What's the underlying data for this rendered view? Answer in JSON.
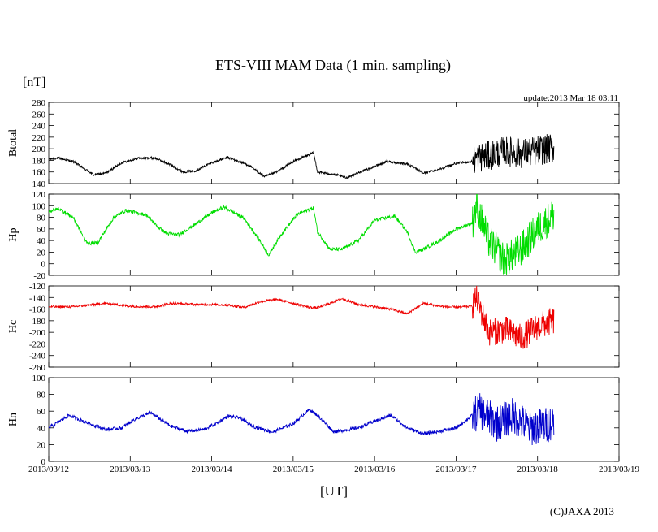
{
  "title": "ETS-VIII MAM Data (1 min. sampling)",
  "unit_label": "[nT]",
  "update_text": "update:2013 Mar 18 03:11",
  "xlabel": "[UT]",
  "copyright": "(C)JAXA 2013",
  "chart_data": {
    "type": "line",
    "x_axis": {
      "unit": "day",
      "range": [
        0,
        7
      ],
      "tick_values": [
        0,
        1,
        2,
        3,
        4,
        5,
        6,
        7
      ],
      "tick_labels": [
        "2013/03/12",
        "2013/03/13",
        "2013/03/14",
        "2013/03/15",
        "2013/03/16",
        "2013/03/17",
        "2013/03/18",
        "2013/03/19"
      ]
    },
    "panels": [
      {
        "name": "Btotal",
        "color": "#000000",
        "ylim": [
          140,
          280
        ],
        "yticks": [
          140,
          160,
          180,
          200,
          220,
          240,
          260,
          280
        ],
        "noise": 2,
        "storm_noise": 26,
        "x": [
          0,
          0.12,
          0.3,
          0.5,
          0.55,
          0.7,
          0.9,
          1.1,
          1.3,
          1.5,
          1.65,
          1.8,
          2.0,
          2.2,
          2.45,
          2.65,
          2.8,
          3.0,
          3.2,
          3.25,
          3.3,
          3.5,
          3.65,
          3.9,
          4.15,
          4.4,
          4.6,
          4.8,
          5.0,
          5.2,
          5.25,
          5.4,
          5.6,
          5.8,
          6.0,
          6.2
        ],
        "y": [
          182,
          184,
          178,
          160,
          155,
          158,
          176,
          184,
          184,
          172,
          160,
          162,
          176,
          185,
          172,
          152,
          160,
          178,
          190,
          193,
          160,
          156,
          150,
          164,
          178,
          174,
          158,
          165,
          175,
          178,
          184,
          188,
          196,
          192,
          197,
          201
        ]
      },
      {
        "name": "Hp",
        "color": "#00dd00",
        "ylim": [
          -20,
          120
        ],
        "yticks": [
          -20,
          0,
          20,
          40,
          60,
          80,
          100,
          120
        ],
        "noise": 3,
        "storm_noise": 30,
        "x": [
          0,
          0.12,
          0.3,
          0.45,
          0.5,
          0.6,
          0.8,
          0.95,
          1.2,
          1.35,
          1.45,
          1.6,
          1.8,
          2.0,
          2.15,
          2.4,
          2.6,
          2.7,
          2.85,
          3.05,
          3.2,
          3.25,
          3.3,
          3.45,
          3.6,
          3.8,
          4.0,
          4.25,
          4.4,
          4.5,
          4.6,
          4.8,
          5.0,
          5.2,
          5.25,
          5.4,
          5.6,
          5.8,
          6.0,
          6.2
        ],
        "y": [
          90,
          95,
          80,
          40,
          35,
          36,
          80,
          92,
          84,
          62,
          52,
          50,
          68,
          88,
          98,
          78,
          38,
          15,
          50,
          85,
          94,
          96,
          55,
          25,
          25,
          40,
          75,
          82,
          55,
          20,
          25,
          40,
          60,
          70,
          100,
          40,
          5,
          25,
          60,
          85
        ]
      },
      {
        "name": "Hc",
        "color": "#ee0000",
        "ylim": [
          -260,
          -120
        ],
        "yticks": [
          -260,
          -240,
          -220,
          -200,
          -180,
          -160,
          -140,
          -120
        ],
        "noise": 2,
        "storm_noise": 24,
        "x": [
          0,
          0.3,
          0.7,
          1.0,
          1.3,
          1.5,
          1.8,
          2.0,
          2.2,
          2.4,
          2.6,
          2.8,
          3.0,
          3.2,
          3.3,
          3.6,
          3.8,
          4.0,
          4.2,
          4.4,
          4.6,
          4.8,
          5.0,
          5.2,
          5.25,
          5.4,
          5.6,
          5.8,
          6.0,
          6.2
        ],
        "y": [
          -156,
          -156,
          -150,
          -155,
          -156,
          -150,
          -152,
          -152,
          -153,
          -157,
          -147,
          -143,
          -150,
          -157,
          -158,
          -142,
          -152,
          -156,
          -160,
          -168,
          -150,
          -155,
          -157,
          -155,
          -140,
          -200,
          -195,
          -210,
          -190,
          -180
        ]
      },
      {
        "name": "Hn",
        "color": "#0000cc",
        "ylim": [
          0,
          100
        ],
        "yticks": [
          0,
          20,
          40,
          60,
          80,
          100
        ],
        "noise": 2,
        "storm_noise": 22,
        "x": [
          0,
          0.25,
          0.5,
          0.7,
          0.9,
          1.05,
          1.25,
          1.5,
          1.7,
          1.9,
          2.05,
          2.2,
          2.35,
          2.5,
          2.75,
          3.0,
          3.2,
          3.3,
          3.5,
          3.8,
          4.0,
          4.2,
          4.4,
          4.6,
          4.8,
          5.0,
          5.2,
          5.3,
          5.5,
          5.7,
          5.9,
          6.1,
          6.2
        ],
        "y": [
          40,
          55,
          45,
          38,
          40,
          50,
          58,
          42,
          36,
          38,
          45,
          54,
          52,
          42,
          35,
          45,
          62,
          55,
          35,
          40,
          48,
          55,
          40,
          33,
          36,
          40,
          55,
          60,
          45,
          55,
          40,
          43,
          48
        ]
      }
    ]
  }
}
